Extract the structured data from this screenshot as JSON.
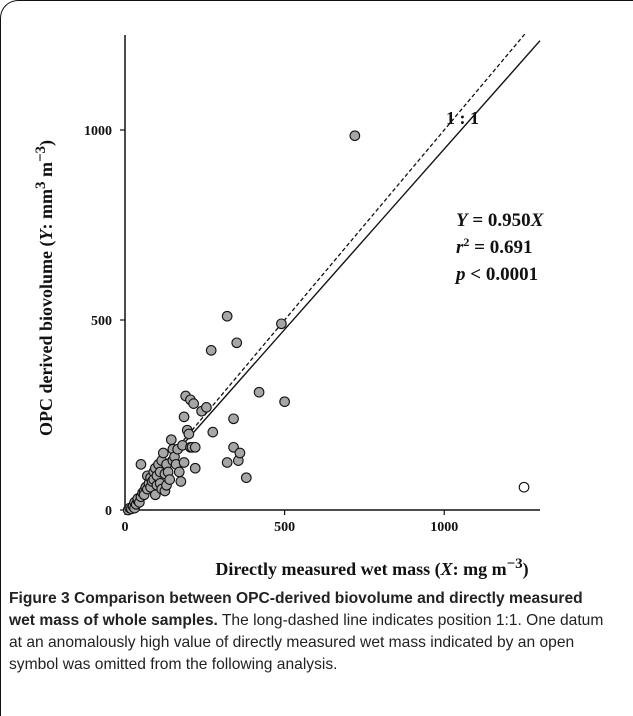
{
  "chart_data": {
    "type": "scatter",
    "xlabel_text": "Directly measured wet mass (",
    "xlabel_var": "X",
    "xlabel_unit": ": mg m",
    "xlabel_exp": "−3",
    "xlabel_close": ")",
    "ylabel_text": "OPC derived biovolume (",
    "ylabel_var": "Y",
    "ylabel_unit": ": mm",
    "ylabel_exp1": "3",
    "ylabel_mid": " m",
    "ylabel_exp2": "−3",
    "ylabel_close": ")",
    "xlim": [
      0,
      1300
    ],
    "ylim": [
      0,
      1250
    ],
    "xticks": [
      0,
      500,
      1000
    ],
    "yticks": [
      0,
      500,
      1000
    ],
    "grid": false,
    "one_to_one_label": "1 : 1",
    "annotations": {
      "eq_var": "Y",
      "eq_rest": " = 0.950",
      "eq_x": "X",
      "r2_var": "r",
      "r2_exp": "2",
      "r2_rest": " = 0.691",
      "p_var": "p",
      "p_rest": " < 0.0001"
    },
    "regression": {
      "slope": 0.95,
      "intercept": 0
    },
    "series": [
      {
        "symbol": "filled",
        "color": "#a6a6a6",
        "points": [
          [
            10,
            0
          ],
          [
            15,
            5
          ],
          [
            20,
            3
          ],
          [
            25,
            10
          ],
          [
            30,
            5
          ],
          [
            30,
            20
          ],
          [
            35,
            15
          ],
          [
            40,
            25
          ],
          [
            40,
            30
          ],
          [
            45,
            20
          ],
          [
            50,
            35
          ],
          [
            50,
            120
          ],
          [
            55,
            45
          ],
          [
            60,
            50
          ],
          [
            60,
            40
          ],
          [
            65,
            60
          ],
          [
            70,
            90
          ],
          [
            70,
            55
          ],
          [
            75,
            70
          ],
          [
            80,
            85
          ],
          [
            80,
            60
          ],
          [
            85,
            75
          ],
          [
            90,
            100
          ],
          [
            90,
            80
          ],
          [
            95,
            110
          ],
          [
            95,
            40
          ],
          [
            100,
            90
          ],
          [
            100,
            65
          ],
          [
            105,
            120
          ],
          [
            110,
            70
          ],
          [
            110,
            100
          ],
          [
            115,
            130
          ],
          [
            115,
            55
          ],
          [
            120,
            150
          ],
          [
            125,
            95
          ],
          [
            125,
            50
          ],
          [
            130,
            120
          ],
          [
            130,
            65
          ],
          [
            135,
            100
          ],
          [
            140,
            80
          ],
          [
            145,
            185
          ],
          [
            150,
            160
          ],
          [
            150,
            130
          ],
          [
            155,
            140
          ],
          [
            160,
            120
          ],
          [
            165,
            160
          ],
          [
            170,
            100
          ],
          [
            175,
            75
          ],
          [
            180,
            170
          ],
          [
            185,
            125
          ],
          [
            185,
            245
          ],
          [
            190,
            300
          ],
          [
            195,
            210
          ],
          [
            200,
            200
          ],
          [
            205,
            290
          ],
          [
            205,
            165
          ],
          [
            210,
            165
          ],
          [
            215,
            280
          ],
          [
            220,
            110
          ],
          [
            220,
            165
          ],
          [
            240,
            260
          ],
          [
            255,
            270
          ],
          [
            270,
            420
          ],
          [
            275,
            205
          ],
          [
            320,
            125
          ],
          [
            320,
            510
          ],
          [
            340,
            165
          ],
          [
            340,
            240
          ],
          [
            350,
            440
          ],
          [
            355,
            130
          ],
          [
            360,
            150
          ],
          [
            380,
            85
          ],
          [
            420,
            310
          ],
          [
            490,
            490
          ],
          [
            500,
            285
          ],
          [
            720,
            985
          ]
        ]
      },
      {
        "symbol": "open",
        "color": "#ffffff",
        "points": [
          [
            1250,
            60
          ]
        ]
      }
    ]
  },
  "caption": {
    "bold_text": "Figure 3 Comparison between OPC-derived biovolume and directly measured wet mass of whole samples.",
    "body_text": " The long-dashed line indicates position 1:1. One datum at an anomalously high value of directly measured wet mass indicated by an open symbol was omitted from the following analysis."
  }
}
